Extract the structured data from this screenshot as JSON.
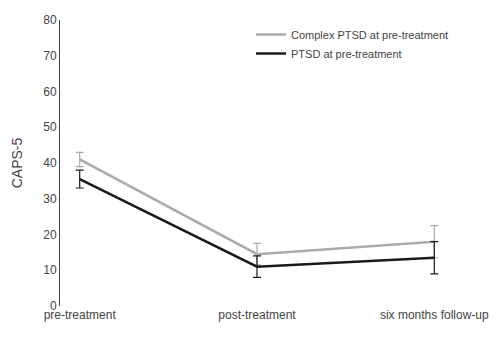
{
  "chart_data": {
    "type": "line",
    "ylabel": "CAPS-5",
    "categories": [
      "pre-treatment",
      "post-treatment",
      "six months follow-up"
    ],
    "series": [
      {
        "name": "Complex PTSD at pre-treatment",
        "color": "#aaaaaa",
        "values": [
          41.0,
          14.5,
          18.0
        ],
        "errors": [
          2.0,
          3.0,
          4.5
        ]
      },
      {
        "name": "PTSD at pre-treatment",
        "color": "#1a1a1a",
        "values": [
          35.5,
          11.0,
          13.5
        ],
        "errors": [
          2.5,
          3.0,
          4.5
        ]
      }
    ],
    "ylim": [
      0,
      80
    ],
    "yticks": [
      0,
      10,
      20,
      30,
      40,
      50,
      60,
      70,
      80
    ],
    "grid": false,
    "legend": "upper right"
  }
}
